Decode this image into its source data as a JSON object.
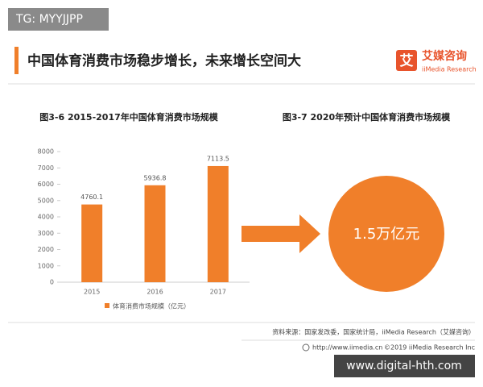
{
  "watermark_top": "TG: MYYJJPP",
  "header": {
    "title": "中国体育消费市场稳步增长，未来增长空间大",
    "logo_icon": "艾",
    "logo_name": "艾媒咨询",
    "logo_sub": "iiMedia Research"
  },
  "chart_data": {
    "type": "bar",
    "title": "图3-6  2015-2017年中国体育消费市场规模",
    "categories": [
      "2015",
      "2016",
      "2017"
    ],
    "series": [
      {
        "name": "体育消费市场规模（亿元）",
        "color": "#f07f2a",
        "values": [
          4760.1,
          5936.8,
          7113.5
        ]
      }
    ],
    "ylim": [
      0,
      8000
    ],
    "yticks": [
      0,
      1000,
      2000,
      3000,
      4000,
      5000,
      6000,
      7000,
      8000
    ]
  },
  "forecast": {
    "title": "图3-7  2020年预计中国体育消费市场规模",
    "label": "1.5万亿元"
  },
  "footer": {
    "source": "资料来源：国家发改委，国家统计局，iiMedia Research（艾媒咨询）",
    "url": "http://www.iimedia.cn",
    "copyright": "©2019  iiMedia Research  Inc"
  },
  "watermark_bottom": "www.digital-hth.com"
}
